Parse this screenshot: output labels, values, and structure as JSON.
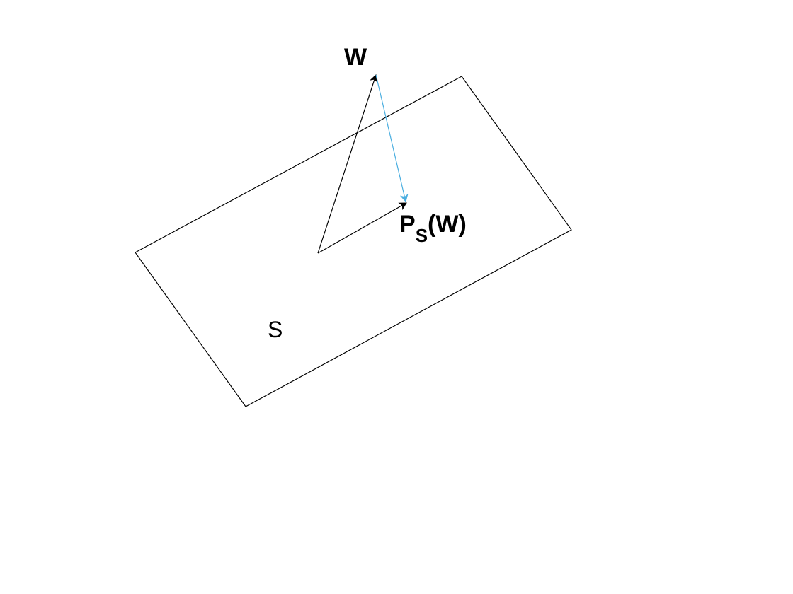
{
  "labels": {
    "vector_w": "W",
    "projection_main": "P",
    "projection_subscript": "S",
    "projection_suffix": "(W)",
    "plane": "S"
  },
  "colors": {
    "outline": "#000000",
    "projection_arrow": "#4aaee0",
    "background": "#ffffff"
  }
}
